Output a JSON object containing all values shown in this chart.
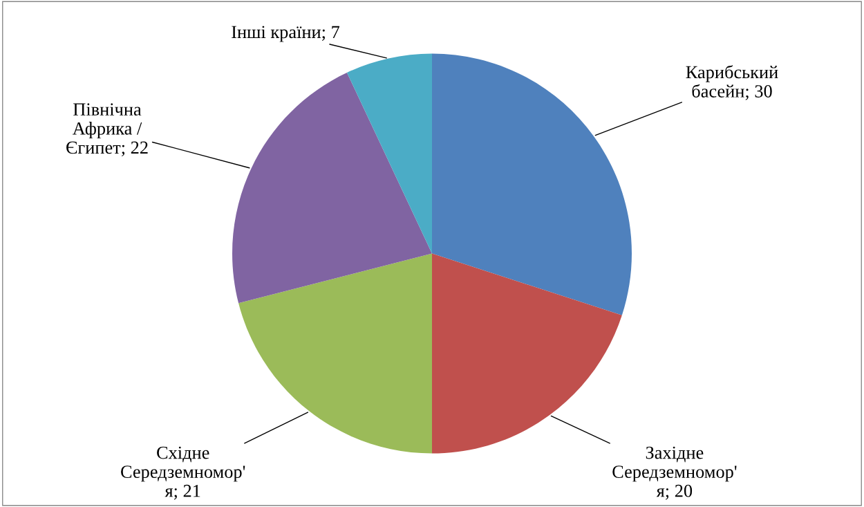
{
  "chart_data": {
    "type": "pie",
    "categories": [
      "Карибський\nбасейн; 30",
      "Західне\nСередземномор'\nя; 20",
      "Східне\nСередземномор'\nя; 21",
      "Північна\nАфрика /\nЄгипет; 22",
      "Інші країни; 7"
    ],
    "values": [
      30,
      20,
      21,
      22,
      7
    ],
    "colors": [
      "#4f81bd",
      "#c0504d",
      "#9bbb59",
      "#8064a2",
      "#4bacc6"
    ],
    "legend": false
  }
}
